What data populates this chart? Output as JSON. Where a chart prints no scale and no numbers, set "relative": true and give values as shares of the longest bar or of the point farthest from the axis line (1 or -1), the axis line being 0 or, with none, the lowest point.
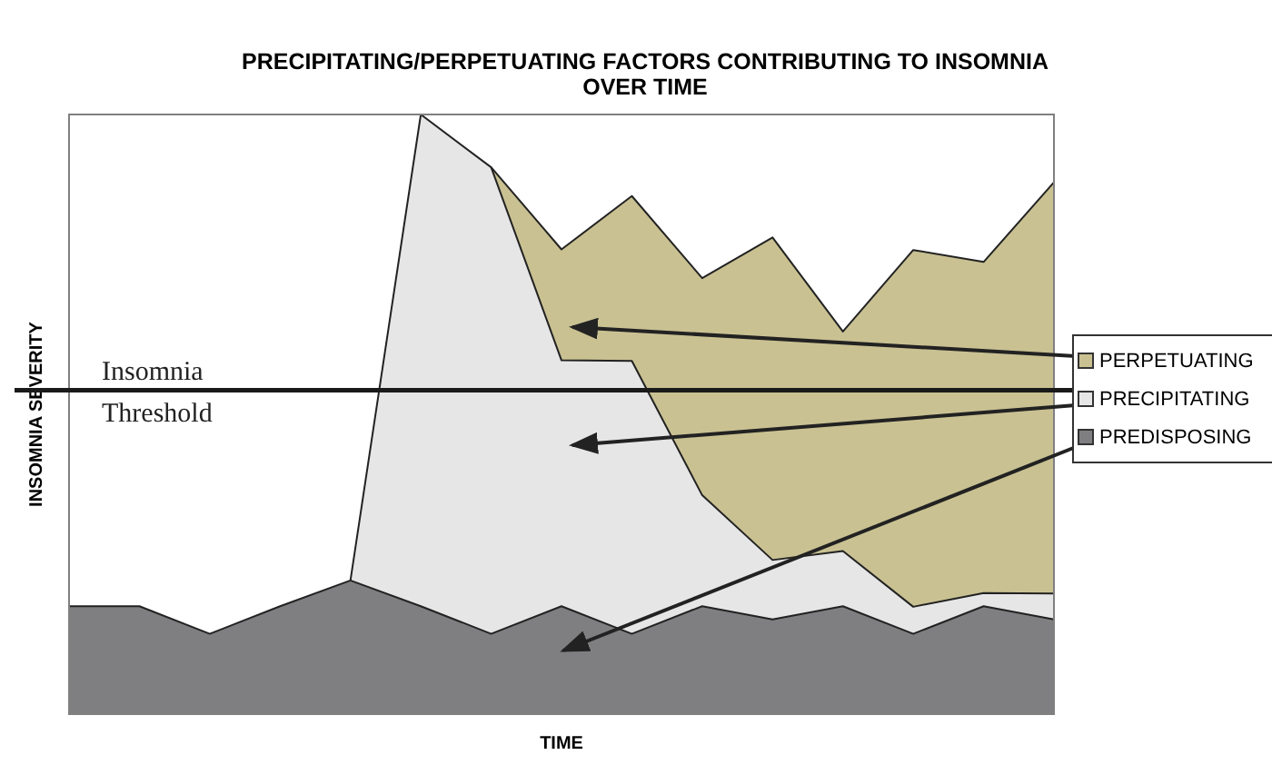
{
  "chart_data": {
    "type": "area",
    "title": "PRECIPITATING/PERPETUATING FACTORS CONTRIBUTING TO INSOMNIA OVER TIME",
    "xlabel": "TIME",
    "ylabel": "INSOMNIA SEVERITY",
    "relative": true,
    "stacked": true,
    "legend": "right",
    "tick_labels": false,
    "grid": false,
    "categories": [
      null,
      null,
      null,
      null,
      null,
      null,
      null,
      null,
      null,
      null,
      null,
      null,
      null,
      null,
      null
    ],
    "series": [
      {
        "name": "PREDISPOSING",
        "color": "#7f7f82",
        "values": [
          0.18,
          0.18,
          0.134,
          0.18,
          0.223,
          0.18,
          0.134,
          0.18,
          0.134,
          0.18,
          0.158,
          0.18,
          0.134,
          0.18,
          0.158
        ]
      },
      {
        "name": "PRECIPITATING",
        "color": "#e6e6e6",
        "values": [
          null,
          null,
          null,
          null,
          0,
          0.82,
          0.778,
          0.41,
          0.455,
          0.185,
          0.099,
          0.092,
          0.045,
          0.022,
          0.043
        ]
      },
      {
        "name": "PERPETUATING",
        "color": "#c9c192",
        "values": [
          null,
          null,
          null,
          null,
          null,
          null,
          0,
          0.185,
          0.275,
          0.362,
          0.538,
          0.366,
          0.595,
          0.552,
          0.686
        ]
      }
    ],
    "ref_lines": [
      {
        "axis": "y",
        "value": 0.54,
        "label": "Insomnia Threshold",
        "color": "#1a1a1a"
      }
    ]
  }
}
